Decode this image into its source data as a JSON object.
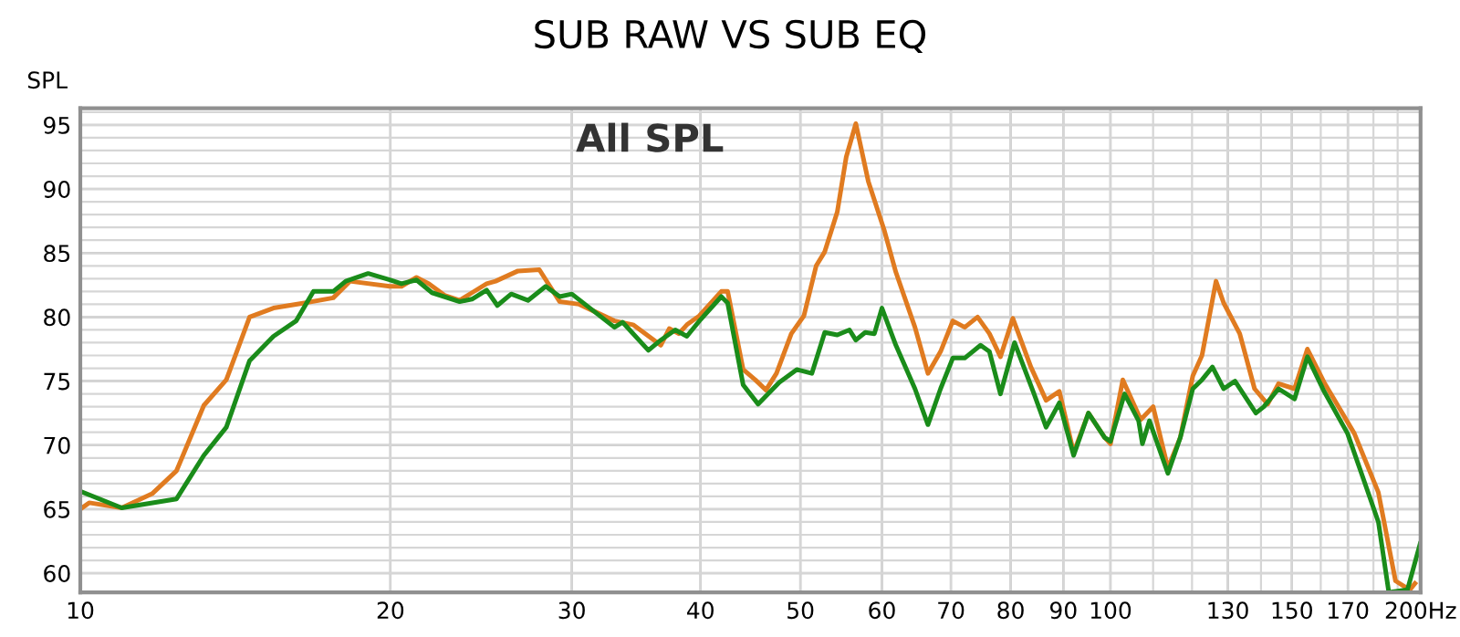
{
  "chart_data": {
    "type": "line",
    "title": "SUB RAW VS SUB EQ",
    "ylabel": "SPL",
    "annotations": [
      "All SPL"
    ],
    "log": "x",
    "grid": true,
    "marker": "none",
    "line_style": "solid",
    "xlim": [
      10,
      200
    ],
    "ylim": [
      58.5,
      96.3
    ],
    "xticks": [
      10,
      20,
      30,
      40,
      50,
      60,
      70,
      80,
      90,
      100,
      {
        "value": 110,
        "label": null
      },
      {
        "value": 120,
        "label": null
      },
      130,
      {
        "value": 140,
        "label": null
      },
      150,
      {
        "value": 160,
        "label": null
      },
      170,
      {
        "value": 180,
        "label": null
      },
      {
        "value": 190,
        "label": null
      },
      {
        "value": 200,
        "label": "200Hz"
      }
    ],
    "yticks": [
      60,
      {
        "value": 61,
        "label": null
      },
      {
        "value": 62,
        "label": null
      },
      {
        "value": 63,
        "label": null
      },
      {
        "value": 64,
        "label": null
      },
      65,
      {
        "value": 66,
        "label": null
      },
      {
        "value": 67,
        "label": null
      },
      {
        "value": 68,
        "label": null
      },
      {
        "value": 69,
        "label": null
      },
      70,
      {
        "value": 71,
        "label": null
      },
      {
        "value": 72,
        "label": null
      },
      {
        "value": 73,
        "label": null
      },
      {
        "value": 74,
        "label": null
      },
      75,
      {
        "value": 76,
        "label": null
      },
      {
        "value": 77,
        "label": null
      },
      {
        "value": 78,
        "label": null
      },
      {
        "value": 79,
        "label": null
      },
      80,
      {
        "value": 81,
        "label": null
      },
      {
        "value": 82,
        "label": null
      },
      {
        "value": 83,
        "label": null
      },
      {
        "value": 84,
        "label": null
      },
      85,
      {
        "value": 86,
        "label": null
      },
      {
        "value": 87,
        "label": null
      },
      {
        "value": 88,
        "label": null
      },
      {
        "value": 89,
        "label": null
      },
      90,
      {
        "value": 91,
        "label": null
      },
      {
        "value": 92,
        "label": null
      },
      {
        "value": 93,
        "label": null
      },
      {
        "value": 94,
        "label": null
      },
      95,
      {
        "value": 96,
        "label": null
      }
    ],
    "series": [
      {
        "color": "#e07b20",
        "x": [
          10,
          10.2,
          10.97,
          11.74,
          12.4,
          13.18,
          13.86,
          14.6,
          15.4,
          16.5,
          17.6,
          18.27,
          19.97,
          20.5,
          21.2,
          21.8,
          22.57,
          23.35,
          24,
          24.8,
          25.3,
          26.6,
          27.9,
          29.2,
          30.5,
          33.0,
          34.4,
          36.6,
          37.3,
          38.1,
          38.8,
          39.9,
          41.9,
          42.5,
          44.0,
          45.2,
          46.3,
          47.4,
          49.0,
          50.4,
          51.8,
          52.8,
          54.3,
          55.4,
          56.6,
          58.2,
          60.3,
          61.9,
          64.6,
          66.5,
          68.4,
          70.3,
          72.2,
          74.3,
          76.3,
          78.2,
          80.4,
          83.7,
          86.6,
          89.2,
          92.1,
          95.2,
          98.7,
          100,
          102.8,
          107.0,
          110.0,
          113.7,
          116.9,
          120.2,
          122.7,
          126.6,
          128.8,
          133.5,
          138.0,
          142.1,
          145.6,
          150.9,
          155.3,
          161.2,
          172.5,
          182.0,
          189.1,
          195.2,
          197.5
        ],
        "values": [
          65.0,
          65.5,
          65.1,
          66.2,
          68.0,
          73.1,
          75.1,
          80.0,
          80.7,
          81.1,
          81.5,
          82.8,
          82.4,
          82.4,
          83.1,
          82.6,
          81.7,
          81.3,
          81.9,
          82.6,
          82.8,
          83.6,
          83.7,
          81.2,
          81.0,
          79.7,
          79.4,
          77.8,
          79.1,
          78.7,
          79.4,
          80.1,
          82.0,
          82.0,
          75.9,
          75.1,
          74.3,
          75.6,
          78.7,
          80.1,
          84.0,
          85.1,
          88.2,
          92.5,
          95.1,
          90.6,
          86.8,
          83.5,
          79.2,
          75.6,
          77.3,
          79.7,
          79.2,
          80.0,
          78.7,
          76.9,
          79.9,
          76.1,
          73.5,
          74.2,
          69.4,
          72.5,
          70.6,
          70.1,
          75.1,
          72.0,
          73.0,
          68.2,
          70.6,
          75.4,
          77.0,
          82.8,
          81.1,
          78.7,
          74.4,
          73.2,
          74.8,
          74.4,
          77.5,
          74.9,
          70.9,
          66.3,
          59.4,
          58.7,
          59.2
        ]
      },
      {
        "color": "#1a8c1a",
        "x": [
          10,
          10.97,
          12.4,
          13.18,
          13.86,
          14.6,
          15.4,
          16.2,
          16.84,
          17.6,
          18.1,
          19.03,
          19.97,
          20.5,
          21.2,
          21.95,
          23.35,
          24,
          24.8,
          25.4,
          26.2,
          27.2,
          28.3,
          29.2,
          30.0,
          33.0,
          33.6,
          35.6,
          36.6,
          37.8,
          38.8,
          39.9,
          41.9,
          42.5,
          44.0,
          45.5,
          47.7,
          49.6,
          51.3,
          52.8,
          54.3,
          55.8,
          56.6,
          57.8,
          59.0,
          60.0,
          61.9,
          64.6,
          66.5,
          68.4,
          70.3,
          72.2,
          74.8,
          76.3,
          78.2,
          80.7,
          84.3,
          86.6,
          89.2,
          92.1,
          95.2,
          98.7,
          100,
          103.2,
          106.5,
          107.4,
          109.1,
          113.7,
          116.9,
          120.2,
          122.7,
          125.6,
          128.8,
          132.1,
          138.4,
          140.9,
          145.6,
          150.9,
          155.3,
          161.2,
          169.9,
          182.0,
          186.3,
          194.2,
          199.8
        ],
        "values": [
          66.4,
          65.1,
          65.8,
          69.2,
          71.4,
          76.6,
          78.5,
          79.7,
          82.0,
          82.0,
          82.8,
          83.4,
          82.9,
          82.6,
          82.9,
          81.9,
          81.2,
          81.4,
          82.1,
          80.9,
          81.8,
          81.3,
          82.4,
          81.6,
          81.8,
          79.2,
          79.6,
          77.4,
          78.2,
          79.0,
          78.5,
          79.7,
          81.6,
          81.1,
          74.7,
          73.2,
          74.9,
          75.9,
          75.6,
          78.8,
          78.6,
          79.0,
          78.2,
          78.8,
          78.7,
          80.7,
          77.8,
          74.4,
          71.6,
          74.4,
          76.8,
          76.8,
          77.8,
          77.3,
          74.0,
          78.0,
          74.0,
          71.4,
          73.3,
          69.2,
          72.5,
          70.6,
          70.3,
          74.0,
          71.9,
          70.1,
          71.9,
          67.8,
          70.6,
          74.4,
          75.1,
          76.1,
          74.4,
          75.0,
          72.5,
          73.0,
          74.4,
          73.6,
          76.9,
          74.2,
          70.9,
          64.0,
          58.5,
          58.7,
          62.3
        ]
      }
    ]
  }
}
